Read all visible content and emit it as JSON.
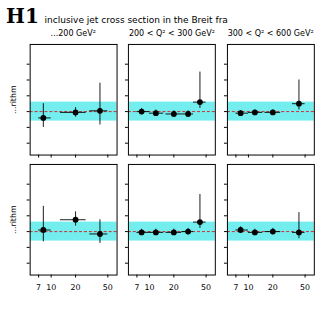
{
  "title": "H1",
  "subtitle": "  inclusive jet cross section in the Breit fra",
  "chart_data": [
    {
      "type": "scatter",
      "title": "...200 GeV²",
      "y_label": "...rithm",
      "log": "x",
      "tick_labels": false,
      "xlim": [
        5.5,
        65
      ],
      "ylim": [
        0.45,
        1.85
      ],
      "xticks": [
        7,
        10,
        20,
        50
      ],
      "yticks": [
        0.6,
        0.8,
        1.0,
        1.2,
        1.4,
        1.6
      ],
      "band": {
        "y0": 0.88,
        "y1": 1.12,
        "color": "#00dede"
      },
      "reference_line": {
        "y": 1.0,
        "color": "#dd0000",
        "line_style": "dashed"
      },
      "color": "black",
      "marker": "circle",
      "x": [
        8,
        20,
        40
      ],
      "values": [
        0.92,
        0.99,
        1.01
      ],
      "xerr_lo": [
        1,
        7,
        10
      ],
      "xerr_hi": [
        2,
        7,
        10
      ],
      "yerr_lo": [
        0.12,
        0.06,
        0.18
      ],
      "yerr_hi": [
        0.18,
        0.06,
        0.35
      ]
    },
    {
      "type": "scatter",
      "title": "200 < Q² < 300 GeV²",
      "log": "x",
      "tick_labels": false,
      "xlim": [
        5.5,
        65
      ],
      "ylim": [
        0.45,
        1.85
      ],
      "xticks": [
        7,
        10,
        20,
        50
      ],
      "yticks": [
        0.6,
        0.8,
        1.0,
        1.2,
        1.4,
        1.6
      ],
      "band": {
        "y0": 0.88,
        "y1": 1.12,
        "color": "#00dede"
      },
      "reference_line": {
        "y": 1.0,
        "color": "#dd0000",
        "line_style": "dashed"
      },
      "color": "black",
      "marker": "circle",
      "x": [
        8,
        12,
        20,
        30,
        42
      ],
      "values": [
        1.0,
        0.98,
        0.97,
        0.97,
        1.12
      ],
      "xerr_lo": [
        1,
        2,
        4,
        5,
        7
      ],
      "xerr_hi": [
        2,
        3,
        5,
        5,
        8
      ],
      "yerr_lo": [
        0.04,
        0.04,
        0.04,
        0.04,
        0.08
      ],
      "yerr_hi": [
        0.04,
        0.04,
        0.04,
        0.04,
        0.38
      ]
    },
    {
      "type": "scatter",
      "title": "300 < Q² < 600 GeV²",
      "log": "x",
      "tick_labels": false,
      "xlim": [
        5.5,
        65
      ],
      "ylim": [
        0.45,
        1.85
      ],
      "xticks": [
        7,
        10,
        20,
        50
      ],
      "yticks": [
        0.6,
        0.8,
        1.0,
        1.2,
        1.4,
        1.6
      ],
      "band": {
        "y0": 0.88,
        "y1": 1.12,
        "color": "#00dede"
      },
      "reference_line": {
        "y": 1.0,
        "color": "#dd0000",
        "line_style": "dashed"
      },
      "color": "black",
      "marker": "circle",
      "x": [
        8,
        12,
        20,
        42
      ],
      "values": [
        0.98,
        0.99,
        0.99,
        1.1
      ],
      "xerr_lo": [
        1,
        2,
        4,
        7
      ],
      "xerr_hi": [
        2,
        3,
        5,
        8
      ],
      "yerr_lo": [
        0.03,
        0.03,
        0.03,
        0.08
      ],
      "yerr_hi": [
        0.03,
        0.03,
        0.03,
        0.3
      ]
    },
    {
      "type": "scatter",
      "y_label": "...rithm",
      "log": "x",
      "tick_labels": "x",
      "xlim": [
        5.5,
        65
      ],
      "ylim": [
        0.45,
        1.85
      ],
      "xticks": [
        7,
        10,
        20,
        50
      ],
      "yticks": [
        0.6,
        0.8,
        1.0,
        1.2,
        1.4,
        1.6
      ],
      "band": {
        "y0": 0.88,
        "y1": 1.12,
        "color": "#00dede"
      },
      "reference_line": {
        "y": 1.0,
        "color": "#dd0000",
        "line_style": "dashed"
      },
      "color": "black",
      "marker": "circle",
      "x": [
        8,
        20,
        40
      ],
      "values": [
        1.02,
        1.15,
        0.97
      ],
      "xerr_lo": [
        1,
        7,
        10
      ],
      "xerr_hi": [
        2,
        7,
        10
      ],
      "yerr_lo": [
        0.15,
        0.08,
        0.12
      ],
      "yerr_hi": [
        0.3,
        0.1,
        0.18
      ]
    },
    {
      "type": "scatter",
      "log": "x",
      "tick_labels": "x",
      "xlim": [
        5.5,
        65
      ],
      "ylim": [
        0.45,
        1.85
      ],
      "xticks": [
        7,
        10,
        20,
        50
      ],
      "yticks": [
        0.6,
        0.8,
        1.0,
        1.2,
        1.4,
        1.6
      ],
      "band": {
        "y0": 0.88,
        "y1": 1.12,
        "color": "#00dede"
      },
      "reference_line": {
        "y": 1.0,
        "color": "#dd0000",
        "line_style": "dashed"
      },
      "color": "black",
      "marker": "circle",
      "x": [
        8,
        12,
        20,
        30,
        42
      ],
      "values": [
        0.99,
        0.99,
        0.99,
        1.0,
        1.12
      ],
      "xerr_lo": [
        1,
        2,
        4,
        5,
        7
      ],
      "xerr_hi": [
        2,
        3,
        5,
        5,
        8
      ],
      "yerr_lo": [
        0.04,
        0.04,
        0.04,
        0.04,
        0.08
      ],
      "yerr_hi": [
        0.04,
        0.04,
        0.04,
        0.04,
        0.35
      ]
    },
    {
      "type": "scatter",
      "log": "x",
      "tick_labels": "x",
      "xlim": [
        5.5,
        65
      ],
      "ylim": [
        0.45,
        1.85
      ],
      "xticks": [
        7,
        10,
        20,
        50
      ],
      "yticks": [
        0.6,
        0.8,
        1.0,
        1.2,
        1.4,
        1.6
      ],
      "band": {
        "y0": 0.88,
        "y1": 1.12,
        "color": "#00dede"
      },
      "reference_line": {
        "y": 1.0,
        "color": "#dd0000",
        "line_style": "dashed"
      },
      "color": "black",
      "marker": "circle",
      "x": [
        8,
        12,
        20,
        42
      ],
      "values": [
        1.02,
        0.99,
        1.0,
        0.99
      ],
      "xerr_lo": [
        1,
        2,
        4,
        7
      ],
      "xerr_hi": [
        2,
        3,
        5,
        8
      ],
      "yerr_lo": [
        0.04,
        0.04,
        0.04,
        0.08
      ],
      "yerr_hi": [
        0.04,
        0.04,
        0.04,
        0.25
      ]
    }
  ]
}
